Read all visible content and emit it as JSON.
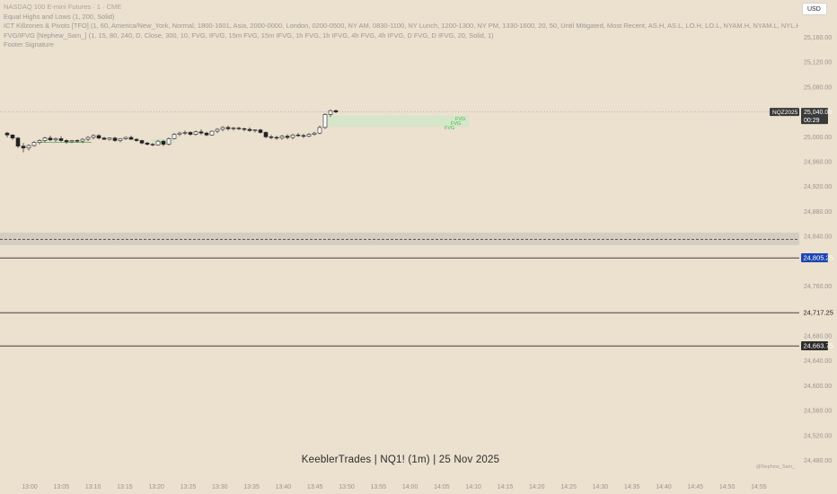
{
  "legend": {
    "title": "NASDAQ 100 E-mini Futures · 1 · CME",
    "lines": [
      "Equal Highs and Lows (1, 200, Solid)",
      "ICT Killzones & Pivots [TFO] (1, 60, America/New_York, Normal, 1800-1601, Asia, 2000-0000, London, 0200-0500, NY AM, 0830-1100, NY Lunch, 1200-1300, NY PM, 1330-1600, 20, 50, Until Mitigated, Most Recent, AS.H, AS.L, LO.H, LO.L, NYAM.H, NYAM.L, NYL.H, NYL.L, N",
      "FVG/IFVG [Nephew_Sam_] (1, 15, 80, 240, D, Close, 300, 10, FVG, IFVG, 15m FVG, 15m IFVG, 1h FVG, 1h IFVG, 4h FVG, 4h IFVG, D FVG, D IFVG, 20, Solid, 1)",
      "Footer Signature"
    ]
  },
  "currency_button": "USD",
  "symbol_tag": "NQZ2025",
  "last_price": "25,040.00",
  "countdown": "00:29",
  "price_axis": {
    "min": 24460,
    "max": 25180,
    "ticks": [
      25160,
      25120,
      25080,
      25040,
      25000,
      24960,
      24920,
      24880,
      24840,
      24800,
      24760,
      24720,
      24680,
      24640,
      24600,
      24560,
      24520,
      24480
    ],
    "tick_labels": [
      "25,160.00",
      "25,120.00",
      "25,080.00",
      "25,040.00",
      "25,000.00",
      "24,960.00",
      "24,920.00",
      "24,880.00",
      "24,840.00",
      "24,800.00",
      "24,760.00",
      "24,720.00",
      "24,680.00",
      "24,640.00",
      "24,600.00",
      "24,560.00",
      "24,520.00",
      "24,480.00"
    ],
    "visible_tick_labels": [
      "25,160.00",
      "25,120.00",
      "25,080.00",
      "25,000.00",
      "24,960.00",
      "24,920.00",
      "24,880.00",
      "24,840.00",
      "24,760.00",
      "24,680.00",
      "24,640.00",
      "24,600.00",
      "24,560.00",
      "24,520.00",
      "24,480.00"
    ]
  },
  "levels": [
    {
      "label": "24,805.25",
      "price": 24805.25,
      "style": "blue-tag"
    },
    {
      "label": "24,717.25",
      "price": 24717.25,
      "style": "plain-tag"
    },
    {
      "label": "24,663.75",
      "price": 24663.75,
      "style": "dark-tag"
    }
  ],
  "time_axis": {
    "labels": [
      "13:00",
      "13:05",
      "13:10",
      "13:15",
      "13:20",
      "13:25",
      "13:30",
      "13:35",
      "13:40",
      "13:45",
      "13:50",
      "13:55",
      "14:00",
      "14:05",
      "14:10",
      "14:15",
      "14:20",
      "14:25",
      "14:30",
      "14:35",
      "14:40",
      "14:45",
      "14:50",
      "14:55"
    ]
  },
  "chart_data": {
    "type": "candlestick",
    "timeframe": "1m",
    "start_time": "13:00",
    "candles": [
      [
        25006,
        25008,
        24999,
        25003
      ],
      [
        25003,
        25004,
        24995,
        24998
      ],
      [
        24998,
        25000,
        24982,
        24985
      ],
      [
        24985,
        24990,
        24975,
        24982
      ],
      [
        24982,
        24988,
        24978,
        24986
      ],
      [
        24986,
        24993,
        24984,
        24991
      ],
      [
        24991,
        24996,
        24988,
        24994
      ],
      [
        24994,
        25000,
        24991,
        24998
      ],
      [
        24998,
        25002,
        24993,
        24995
      ],
      [
        24995,
        24999,
        24992,
        24997
      ],
      [
        24997,
        25001,
        24992,
        24994
      ],
      [
        24994,
        24996,
        24989,
        24992
      ],
      [
        24992,
        24995,
        24990,
        24994
      ],
      [
        24994,
        24996,
        24991,
        24993
      ],
      [
        24993,
        24998,
        24990,
        24996
      ],
      [
        24996,
        25001,
        24993,
        24999
      ],
      [
        24999,
        25004,
        24996,
        25002
      ],
      [
        25002,
        25004,
        24996,
        24998
      ],
      [
        24998,
        25000,
        24995,
        24996
      ],
      [
        24996,
        24999,
        24994,
        24998
      ],
      [
        24998,
        25000,
        24992,
        24994
      ],
      [
        24994,
        24998,
        24991,
        24997
      ],
      [
        24997,
        25000,
        24995,
        24999
      ],
      [
        24999,
        25002,
        24995,
        24996
      ],
      [
        24996,
        24998,
        24992,
        24994
      ],
      [
        24994,
        24995,
        24988,
        24990
      ],
      [
        24990,
        24992,
        24986,
        24988
      ],
      [
        24988,
        24990,
        24985,
        24987
      ],
      [
        24987,
        24995,
        24986,
        24993
      ],
      [
        24993,
        24995,
        24985,
        24988
      ],
      [
        24988,
        24999,
        24986,
        24997
      ],
      [
        24997,
        25006,
        24996,
        25004
      ],
      [
        25004,
        25008,
        25001,
        25006
      ],
      [
        25006,
        25010,
        25003,
        25007
      ],
      [
        25007,
        25009,
        25002,
        25004
      ],
      [
        25004,
        25010,
        25002,
        25008
      ],
      [
        25008,
        25012,
        25003,
        25006
      ],
      [
        25006,
        25008,
        25001,
        25003
      ],
      [
        25003,
        25010,
        25002,
        25009
      ],
      [
        25009,
        25014,
        25006,
        25012
      ],
      [
        25012,
        25017,
        25009,
        25015
      ],
      [
        25015,
        25018,
        25010,
        25013
      ],
      [
        25013,
        25016,
        25010,
        25014
      ],
      [
        25014,
        25016,
        25011,
        25013
      ],
      [
        25013,
        25015,
        25009,
        25012
      ],
      [
        25012,
        25015,
        25008,
        25010
      ],
      [
        25010,
        25012,
        25007,
        25011
      ],
      [
        25011,
        25013,
        25005,
        25007
      ],
      [
        25007,
        25009,
        24998,
        25000
      ],
      [
        25000,
        25003,
        24996,
        24999
      ],
      [
        24999,
        25002,
        24995,
        24998
      ],
      [
        24998,
        25003,
        24995,
        25001
      ],
      [
        25001,
        25004,
        24996,
        24999
      ],
      [
        24999,
        25005,
        24996,
        25003
      ],
      [
        25003,
        25006,
        25000,
        25002
      ],
      [
        25002,
        25005,
        24998,
        25001
      ],
      [
        25001,
        25006,
        24999,
        25004
      ],
      [
        25004,
        25008,
        25002,
        25006
      ],
      [
        25006,
        25018,
        25004,
        25015
      ],
      [
        25015,
        25038,
        25013,
        25036
      ],
      [
        25036,
        25044,
        25032,
        25042
      ],
      [
        25042,
        25044,
        25038,
        25040
      ]
    ],
    "fvg_zones": [
      {
        "label": "FVG",
        "from": 24991,
        "to": 24996
      },
      {
        "label": "FVG",
        "from": 25016,
        "to": 25034
      }
    ],
    "fvg_labels": [
      "FVG",
      "FVG",
      "FVG"
    ],
    "grey_zone": {
      "from": 24826,
      "to": 24846
    },
    "dashed_level": 24835,
    "last_price_line": 25040
  },
  "footer": {
    "text": "KeeblerTrades   |   NQ1! (1m)   |   25 Nov 2025",
    "watermark": "@Nephew_Sam_"
  }
}
